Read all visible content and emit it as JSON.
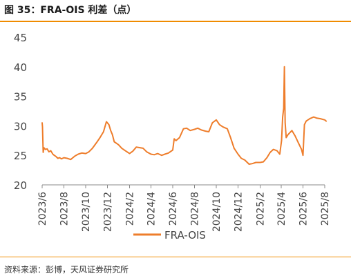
{
  "title": "图 35：FRA-OIS 利差（点）",
  "source": "资料来源：彭博，天风证券研究所",
  "colors": {
    "accent": "#f08c00",
    "series": "#ee7d2b",
    "axis": "#888888",
    "text": "#333333"
  },
  "chart_data": {
    "type": "line",
    "title": "",
    "xlabel": "",
    "ylabel": "",
    "ylim": [
      20,
      45
    ],
    "yticks": [
      20,
      25,
      30,
      35,
      40,
      45
    ],
    "xlim": [
      "2023-06",
      "2025-08"
    ],
    "xticks": [
      "2023/6",
      "2023/8",
      "2023/10",
      "2023/12",
      "2024/2",
      "2024/4",
      "2024/6",
      "2024/8",
      "2024/10",
      "2024/12",
      "2025/2",
      "2025/4",
      "2025/6",
      "2025/8"
    ],
    "grid": false,
    "legend_position": "bottom-center",
    "series": [
      {
        "name": "FRA-OIS",
        "x": [
          "2023-06-01",
          "2023-06-02",
          "2023-06-04",
          "2023-06-06",
          "2023-06-10",
          "2023-06-15",
          "2023-06-20",
          "2023-06-25",
          "2023-07-01",
          "2023-07-05",
          "2023-07-10",
          "2023-07-15",
          "2023-07-20",
          "2023-07-25",
          "2023-08-01",
          "2023-08-10",
          "2023-08-20",
          "2023-09-01",
          "2023-09-10",
          "2023-09-20",
          "2023-10-01",
          "2023-10-10",
          "2023-10-20",
          "2023-11-01",
          "2023-11-10",
          "2023-11-20",
          "2023-11-28",
          "2023-12-05",
          "2023-12-10",
          "2023-12-15",
          "2023-12-20",
          "2024-01-01",
          "2024-01-10",
          "2024-01-20",
          "2024-02-01",
          "2024-02-10",
          "2024-02-20",
          "2024-03-01",
          "2024-03-10",
          "2024-03-20",
          "2024-04-01",
          "2024-04-10",
          "2024-04-20",
          "2024-05-01",
          "2024-05-10",
          "2024-05-20",
          "2024-06-01",
          "2024-06-05",
          "2024-06-10",
          "2024-06-20",
          "2024-07-01",
          "2024-07-10",
          "2024-07-20",
          "2024-08-01",
          "2024-08-10",
          "2024-08-20",
          "2024-09-01",
          "2024-09-10",
          "2024-09-20",
          "2024-10-01",
          "2024-10-10",
          "2024-10-20",
          "2024-11-01",
          "2024-11-10",
          "2024-11-20",
          "2024-12-01",
          "2024-12-10",
          "2024-12-20",
          "2025-01-01",
          "2025-01-10",
          "2025-01-20",
          "2025-02-01",
          "2025-02-10",
          "2025-02-20",
          "2025-03-01",
          "2025-03-10",
          "2025-03-20",
          "2025-03-28",
          "2025-04-02",
          "2025-04-05",
          "2025-04-08",
          "2025-04-10",
          "2025-04-12",
          "2025-04-15",
          "2025-04-20",
          "2025-05-01",
          "2025-05-10",
          "2025-05-20",
          "2025-05-28",
          "2025-06-01",
          "2025-06-05",
          "2025-06-10",
          "2025-06-20",
          "2025-07-01",
          "2025-07-10",
          "2025-07-20",
          "2025-08-01",
          "2025-08-05"
        ],
        "values": [
          30.5,
          29.8,
          25.5,
          26.3,
          26.0,
          26.1,
          25.6,
          25.8,
          25.2,
          25.0,
          24.8,
          24.5,
          24.6,
          24.4,
          24.6,
          24.5,
          24.3,
          24.9,
          25.2,
          25.4,
          25.3,
          25.6,
          26.2,
          27.2,
          28.0,
          29.0,
          30.7,
          30.2,
          29.2,
          28.5,
          27.3,
          26.8,
          26.2,
          25.8,
          25.3,
          25.7,
          26.4,
          26.3,
          26.2,
          25.6,
          25.2,
          25.1,
          25.3,
          25.0,
          25.2,
          25.4,
          25.9,
          27.8,
          27.5,
          28.0,
          29.5,
          29.6,
          29.2,
          29.4,
          29.6,
          29.3,
          29.1,
          29.0,
          30.5,
          31.0,
          30.2,
          29.8,
          29.5,
          28.0,
          26.2,
          25.2,
          24.5,
          24.2,
          23.5,
          23.6,
          23.8,
          23.8,
          23.9,
          24.6,
          25.5,
          26.0,
          25.8,
          25.2,
          27.5,
          31.5,
          33.0,
          40.0,
          30.5,
          28.0,
          28.5,
          29.2,
          28.3,
          27.0,
          26.0,
          25.0,
          30.2,
          30.8,
          31.2,
          31.5,
          31.3,
          31.2,
          31.0,
          30.8
        ]
      }
    ]
  }
}
